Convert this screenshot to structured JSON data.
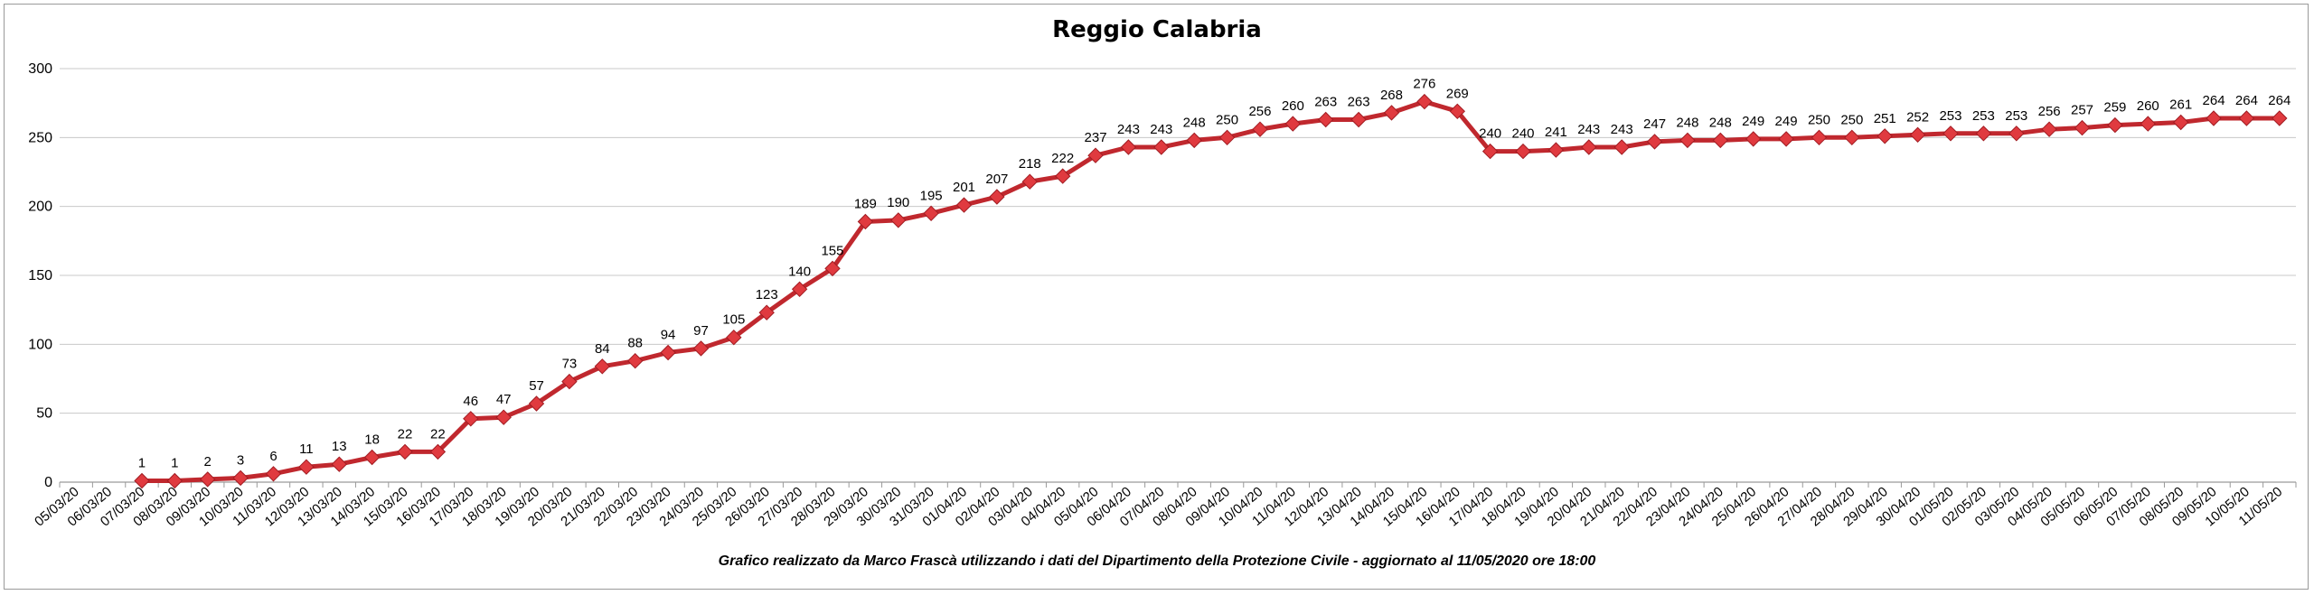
{
  "chart_data": {
    "type": "line",
    "title": "Reggio Calabria",
    "xlabel": "",
    "ylabel": "",
    "ylim": [
      0,
      300
    ],
    "yticks": [
      0,
      50,
      100,
      150,
      200,
      250,
      300
    ],
    "grid": true,
    "legend": "none",
    "colors": {
      "line": "#c0282e",
      "marker": "#e03a3f",
      "grid": "#c8c8c8"
    },
    "categories": [
      "05/03/20",
      "06/03/20",
      "07/03/20",
      "08/03/20",
      "09/03/20",
      "10/03/20",
      "11/03/20",
      "12/03/20",
      "13/03/20",
      "14/03/20",
      "15/03/20",
      "16/03/20",
      "17/03/20",
      "18/03/20",
      "19/03/20",
      "20/03/20",
      "21/03/20",
      "22/03/20",
      "23/03/20",
      "24/03/20",
      "25/03/20",
      "26/03/20",
      "27/03/20",
      "28/03/20",
      "29/03/20",
      "30/03/20",
      "31/03/20",
      "01/04/20",
      "02/04/20",
      "03/04/20",
      "04/04/20",
      "05/04/20",
      "06/04/20",
      "07/04/20",
      "08/04/20",
      "09/04/20",
      "10/04/20",
      "11/04/20",
      "12/04/20",
      "13/04/20",
      "14/04/20",
      "15/04/20",
      "16/04/20",
      "17/04/20",
      "18/04/20",
      "19/04/20",
      "20/04/20",
      "21/04/20",
      "22/04/20",
      "23/04/20",
      "24/04/20",
      "25/04/20",
      "26/04/20",
      "27/04/20",
      "28/04/20",
      "29/04/20",
      "30/04/20",
      "01/05/20",
      "02/05/20",
      "03/05/20",
      "04/05/20",
      "05/05/20",
      "06/05/20",
      "07/05/20",
      "08/05/20",
      "09/05/20",
      "10/05/20",
      "11/05/20"
    ],
    "series": [
      {
        "values": [
          null,
          null,
          1,
          1,
          2,
          3,
          6,
          11,
          13,
          18,
          22,
          22,
          46,
          47,
          57,
          73,
          84,
          88,
          94,
          97,
          105,
          123,
          140,
          155,
          189,
          190,
          195,
          201,
          207,
          218,
          222,
          237,
          243,
          243,
          248,
          250,
          256,
          260,
          263,
          263,
          268,
          276,
          269,
          240,
          240,
          241,
          243,
          243,
          247,
          248,
          248,
          249,
          249,
          250,
          250,
          251,
          252,
          253,
          253,
          253,
          256,
          257,
          259,
          260,
          261,
          264,
          264,
          264
        ]
      }
    ],
    "footnote": "Grafico  realizzato da Marco Frascà  utilizzando i dati del Dipartimento  della Protezione Civile  - aggiornato al 11/05/2020 ore 18:00"
  }
}
